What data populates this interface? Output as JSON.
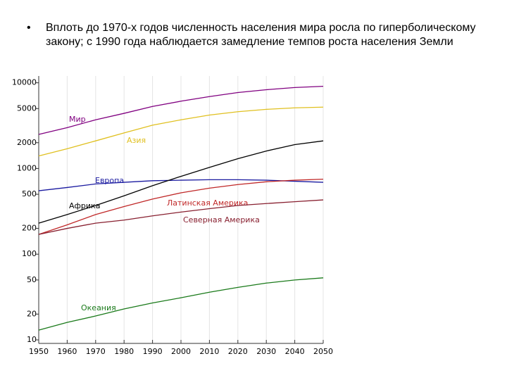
{
  "chart_data": {
    "type": "line",
    "title": "Вплоть до 1970-х годов численность населения мира росла по гиперболическому закону; с 1990 года наблюдается замедление темпов роста населения Земли",
    "x": [
      1950,
      1960,
      1970,
      1980,
      1990,
      2000,
      2010,
      2020,
      2030,
      2040,
      2050
    ],
    "series": [
      {
        "name": "Мир",
        "color": "#800080",
        "values": [
          2500,
          3000,
          3700,
          4400,
          5300,
          6100,
          6900,
          7700,
          8300,
          8800,
          9100
        ]
      },
      {
        "name": "Азия",
        "color": "#e0c020",
        "values": [
          1400,
          1700,
          2100,
          2600,
          3200,
          3700,
          4200,
          4600,
          4900,
          5100,
          5200
        ]
      },
      {
        "name": "Европа",
        "color": "#1a1aa0",
        "values": [
          550,
          600,
          660,
          690,
          720,
          730,
          740,
          740,
          730,
          710,
          690
        ]
      },
      {
        "name": "Африка",
        "color": "#000000",
        "values": [
          230,
          290,
          370,
          480,
          630,
          810,
          1030,
          1300,
          1600,
          1900,
          2100
        ]
      },
      {
        "name": "Латинская Америка",
        "color": "#c02828",
        "values": [
          170,
          220,
          290,
          360,
          440,
          520,
          590,
          650,
          700,
          730,
          750
        ]
      },
      {
        "name": "Северная Америка",
        "color": "#882030",
        "values": [
          170,
          200,
          230,
          250,
          280,
          310,
          340,
          370,
          390,
          410,
          430
        ]
      },
      {
        "name": "Океания",
        "color": "#1a7a1a",
        "values": [
          13,
          16,
          19,
          23,
          27,
          31,
          36,
          41,
          46,
          50,
          53
        ]
      }
    ],
    "xlim": [
      1950,
      2050
    ],
    "xticks": [
      1950,
      1960,
      1970,
      1980,
      1990,
      2000,
      2010,
      2020,
      2030,
      2040,
      2050
    ],
    "ylim": [
      10,
      12000
    ],
    "yticks": [
      10,
      20,
      50,
      100,
      200,
      500,
      1000,
      2000,
      5000,
      10000
    ],
    "log_y": true,
    "grid": "x"
  }
}
